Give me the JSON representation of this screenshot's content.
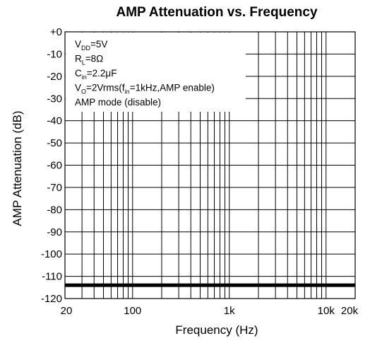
{
  "chart_data": {
    "type": "line",
    "title": "AMP Attenuation vs. Frequency",
    "xlabel": "Frequency (Hz)",
    "ylabel": "AMP Attenuation (dB)",
    "x_scale": "log",
    "xlim": [
      20,
      20000
    ],
    "ylim": [
      -120,
      0
    ],
    "grid": true,
    "x_tick_labels": [
      {
        "value": 20,
        "label": "20"
      },
      {
        "value": 100,
        "label": "100"
      },
      {
        "value": 1000,
        "label": "1k"
      },
      {
        "value": 10000,
        "label": "10k"
      },
      {
        "value": 20000,
        "label": "20k"
      }
    ],
    "y_tick_labels": [
      {
        "value": 0,
        "label": "+0"
      },
      {
        "value": -10,
        "label": "-10"
      },
      {
        "value": -20,
        "label": "-20"
      },
      {
        "value": -30,
        "label": "-30"
      },
      {
        "value": -40,
        "label": "-40"
      },
      {
        "value": -50,
        "label": "-50"
      },
      {
        "value": -60,
        "label": "-60"
      },
      {
        "value": -70,
        "label": "-70"
      },
      {
        "value": -80,
        "label": "-80"
      },
      {
        "value": -90,
        "label": "-90"
      },
      {
        "value": -100,
        "label": "-100"
      },
      {
        "value": -110,
        "label": "-110"
      },
      {
        "value": -120,
        "label": "-120"
      }
    ],
    "series": [
      {
        "x": [
          20,
          100,
          1000,
          10000,
          20000
        ],
        "y": [
          -114,
          -114,
          -114,
          -114,
          -114
        ],
        "color": "#000000"
      }
    ],
    "annotations": [
      {
        "main": "V",
        "sub": "DD",
        "rest": "=5V"
      },
      {
        "main": "R",
        "sub": "L",
        "rest": "=8Ω"
      },
      {
        "main": "C",
        "sub": "in",
        "rest": "=2.2μF"
      },
      {
        "main": "V",
        "sub": "O",
        "rest": "=2Vrms(f",
        "sub2": "in",
        "rest2": "=1kHz,AMP enable)"
      },
      {
        "main": "AMP mode (disable)"
      }
    ],
    "annotation_position": "top-left"
  }
}
